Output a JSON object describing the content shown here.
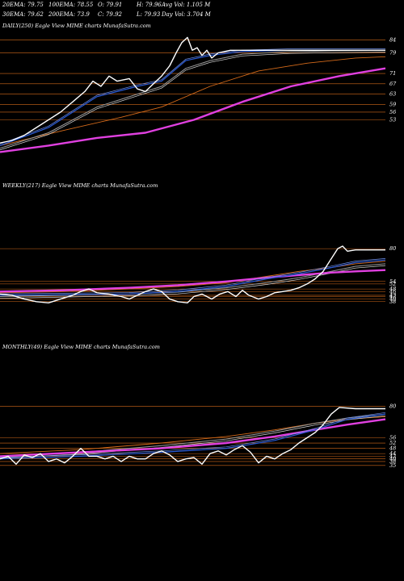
{
  "header": {
    "row1": [
      "20EMA: 79.75",
      "100EMA: 78.55",
      "O: 79.91",
      "H: 79.96",
      "Avg Vol: 1.105 M"
    ],
    "row2": [
      "30EMA: 79.62",
      "200EMA: 73.9",
      "C: 79.92",
      "L: 79.93",
      "Day Vol: 3.704 M"
    ]
  },
  "colors": {
    "background": "#000000",
    "price": "#ffffff",
    "ema_short": "#2a5bd7",
    "ema_long": "#e040e0",
    "orange": "#d46a1a",
    "gray": "#9a9a9a"
  },
  "chart_data": [
    {
      "type": "line",
      "title": "DAILY(250) Eagle  View  MIME charts MunafaSutra.com",
      "y_ticks": [
        84,
        79,
        71,
        67,
        63,
        59,
        56,
        53
      ],
      "ylim": [
        40,
        87
      ],
      "n_points": 250,
      "series": [
        {
          "role": "price",
          "points": [
            [
              0,
              44
            ],
            [
              15,
              45
            ],
            [
              30,
              47
            ],
            [
              45,
              50
            ],
            [
              60,
              53
            ],
            [
              75,
              56
            ],
            [
              90,
              60
            ],
            [
              105,
              64
            ],
            [
              115,
              68
            ],
            [
              125,
              66
            ],
            [
              135,
              70
            ],
            [
              145,
              68
            ],
            [
              160,
              69
            ],
            [
              170,
              65
            ],
            [
              180,
              64
            ],
            [
              190,
              67
            ],
            [
              200,
              70
            ],
            [
              210,
              74
            ],
            [
              218,
              79
            ],
            [
              225,
              83
            ],
            [
              232,
              85
            ],
            [
              238,
              80
            ],
            [
              244,
              81
            ],
            [
              250,
              78
            ],
            [
              256,
              80
            ],
            [
              262,
              77
            ],
            [
              270,
              79
            ],
            [
              285,
              80
            ],
            [
              300,
              80
            ],
            [
              320,
              80
            ],
            [
              340,
              80
            ],
            [
              360,
              80
            ],
            [
              380,
              80
            ],
            [
              400,
              80
            ],
            [
              420,
              80
            ],
            [
              440,
              80
            ],
            [
              460,
              80
            ],
            [
              477,
              80
            ]
          ]
        },
        {
          "role": "ema_short",
          "points": [
            [
              0,
              43
            ],
            [
              60,
              50
            ],
            [
              120,
              62
            ],
            [
              170,
              66
            ],
            [
              200,
              68
            ],
            [
              230,
              76
            ],
            [
              260,
              78
            ],
            [
              300,
              79.5
            ],
            [
              360,
              80
            ],
            [
              420,
              80
            ],
            [
              477,
              80
            ]
          ]
        },
        {
          "role": "gray",
          "points": [
            [
              0,
              42
            ],
            [
              60,
              48
            ],
            [
              120,
              58
            ],
            [
              170,
              63
            ],
            [
              200,
              66
            ],
            [
              230,
              73
            ],
            [
              260,
              76
            ],
            [
              300,
              78.5
            ],
            [
              360,
              79.5
            ],
            [
              420,
              79.8
            ],
            [
              477,
              80
            ]
          ]
        },
        {
          "role": "orange",
          "points": [
            [
              0,
              43
            ],
            [
              80,
              49
            ],
            [
              150,
              54
            ],
            [
              200,
              58
            ],
            [
              260,
              66
            ],
            [
              320,
              72
            ],
            [
              380,
              75
            ],
            [
              440,
              77
            ],
            [
              477,
              77.5
            ]
          ]
        },
        {
          "role": "ema_long",
          "points": [
            [
              0,
              40.5
            ],
            [
              60,
              43
            ],
            [
              120,
              46
            ],
            [
              180,
              48
            ],
            [
              240,
              53
            ],
            [
              300,
              60
            ],
            [
              360,
              66
            ],
            [
              420,
              70
            ],
            [
              477,
              73
            ]
          ]
        }
      ]
    },
    {
      "type": "line",
      "title": "WEEKLY(217) Eagle  View  MIME charts MunafaSutra.com",
      "y_ticks": [
        80,
        54,
        52,
        48,
        46,
        43,
        42,
        40,
        38
      ],
      "ylim": [
        34,
        82
      ],
      "n_points": 217,
      "series": [
        {
          "role": "price",
          "points": [
            [
              0,
              44
            ],
            [
              15,
              43
            ],
            [
              30,
              40
            ],
            [
              45,
              38
            ],
            [
              60,
              37
            ],
            [
              75,
              40
            ],
            [
              90,
              43
            ],
            [
              100,
              46
            ],
            [
              110,
              48
            ],
            [
              120,
              45
            ],
            [
              135,
              44
            ],
            [
              150,
              42
            ],
            [
              160,
              40
            ],
            [
              170,
              43
            ],
            [
              180,
              46
            ],
            [
              190,
              48
            ],
            [
              200,
              46
            ],
            [
              210,
              40
            ],
            [
              220,
              38
            ],
            [
              232,
              37
            ],
            [
              240,
              42
            ],
            [
              250,
              44
            ],
            [
              262,
              40
            ],
            [
              272,
              44
            ],
            [
              282,
              46
            ],
            [
              292,
              42
            ],
            [
              300,
              47
            ],
            [
              308,
              43
            ],
            [
              320,
              40
            ],
            [
              330,
              42
            ],
            [
              340,
              45
            ],
            [
              350,
              46
            ],
            [
              360,
              47
            ],
            [
              370,
              49
            ],
            [
              380,
              52
            ],
            [
              390,
              56
            ],
            [
              400,
              62
            ],
            [
              410,
              72
            ],
            [
              418,
              80
            ],
            [
              424,
              82
            ],
            [
              430,
              78
            ],
            [
              440,
              79
            ],
            [
              455,
              79
            ],
            [
              477,
              79
            ]
          ]
        },
        {
          "role": "ema_short",
          "points": [
            [
              0,
              43
            ],
            [
              80,
              43.5
            ],
            [
              160,
              44
            ],
            [
              220,
              46
            ],
            [
              280,
              50
            ],
            [
              330,
              56
            ],
            [
              370,
              60
            ],
            [
              410,
              65
            ],
            [
              440,
              69
            ],
            [
              477,
              71
            ]
          ]
        },
        {
          "role": "gray",
          "points": [
            [
              0,
              42
            ],
            [
              80,
              43
            ],
            [
              160,
              44
            ],
            [
              220,
              45.5
            ],
            [
              280,
              49
            ],
            [
              330,
              53
            ],
            [
              370,
              57
            ],
            [
              410,
              62
            ],
            [
              440,
              66
            ],
            [
              477,
              68
            ]
          ]
        },
        {
          "role": "orange",
          "points": [
            [
              0,
              45
            ],
            [
              80,
              46
            ],
            [
              160,
              48
            ],
            [
              220,
              50
            ],
            [
              280,
              53
            ],
            [
              330,
              58
            ],
            [
              370,
              62
            ],
            [
              410,
              65
            ],
            [
              440,
              68
            ],
            [
              477,
              70
            ]
          ]
        },
        {
          "role": "ema_long",
          "points": [
            [
              0,
              46
            ],
            [
              80,
              47
            ],
            [
              160,
              49
            ],
            [
              220,
              51
            ],
            [
              280,
              54
            ],
            [
              330,
              57
            ],
            [
              370,
              59
            ],
            [
              410,
              61
            ],
            [
              440,
              62
            ],
            [
              477,
              63
            ]
          ]
        }
      ]
    },
    {
      "type": "line",
      "title": "MONTHLY(49) Eagle  View  MIME charts MunafaSutra.com",
      "y_ticks": [
        80,
        56,
        52,
        48,
        44,
        42,
        40,
        38,
        35
      ],
      "ylim": [
        30,
        82
      ],
      "n_points": 49,
      "series": [
        {
          "role": "price",
          "points": [
            [
              0,
              40
            ],
            [
              10,
              42
            ],
            [
              20,
              36
            ],
            [
              30,
              43
            ],
            [
              40,
              41
            ],
            [
              50,
              44
            ],
            [
              60,
              38
            ],
            [
              70,
              40
            ],
            [
              80,
              37
            ],
            [
              90,
              42
            ],
            [
              100,
              48
            ],
            [
              110,
              42
            ],
            [
              120,
              42
            ],
            [
              130,
              40
            ],
            [
              140,
              42
            ],
            [
              150,
              38
            ],
            [
              160,
              42
            ],
            [
              170,
              40
            ],
            [
              180,
              40
            ],
            [
              190,
              44
            ],
            [
              200,
              46
            ],
            [
              210,
              43
            ],
            [
              220,
              38
            ],
            [
              230,
              40
            ],
            [
              240,
              41
            ],
            [
              250,
              36
            ],
            [
              260,
              44
            ],
            [
              270,
              46
            ],
            [
              280,
              43
            ],
            [
              290,
              47
            ],
            [
              300,
              50
            ],
            [
              310,
              45
            ],
            [
              320,
              37
            ],
            [
              330,
              42
            ],
            [
              340,
              40
            ],
            [
              350,
              44
            ],
            [
              360,
              47
            ],
            [
              370,
              52
            ],
            [
              380,
              56
            ],
            [
              390,
              60
            ],
            [
              400,
              66
            ],
            [
              410,
              74
            ],
            [
              420,
              79
            ],
            [
              440,
              78
            ],
            [
              460,
              78
            ],
            [
              477,
              78
            ]
          ]
        },
        {
          "role": "ema_short",
          "points": [
            [
              0,
              40
            ],
            [
              100,
              42
            ],
            [
              200,
              45
            ],
            [
              280,
              48
            ],
            [
              340,
              54
            ],
            [
              390,
              62
            ],
            [
              430,
              70
            ],
            [
              477,
              74
            ]
          ]
        },
        {
          "role": "gray",
          "points": [
            [
              0,
              42
            ],
            [
              100,
              45
            ],
            [
              200,
              50
            ],
            [
              280,
              55
            ],
            [
              340,
              61
            ],
            [
              390,
              67
            ],
            [
              430,
              71
            ],
            [
              477,
              74
            ]
          ]
        },
        {
          "role": "orange",
          "points": [
            [
              0,
              44
            ],
            [
              100,
              47
            ],
            [
              200,
              52
            ],
            [
              280,
              57
            ],
            [
              340,
              62
            ],
            [
              390,
              67
            ],
            [
              430,
              70
            ],
            [
              477,
              72
            ]
          ]
        },
        {
          "role": "ema_long",
          "points": [
            [
              0,
              42
            ],
            [
              100,
              45
            ],
            [
              200,
              48
            ],
            [
              280,
              52
            ],
            [
              340,
              57
            ],
            [
              390,
              62
            ],
            [
              430,
              66
            ],
            [
              477,
              70
            ]
          ]
        }
      ]
    }
  ]
}
